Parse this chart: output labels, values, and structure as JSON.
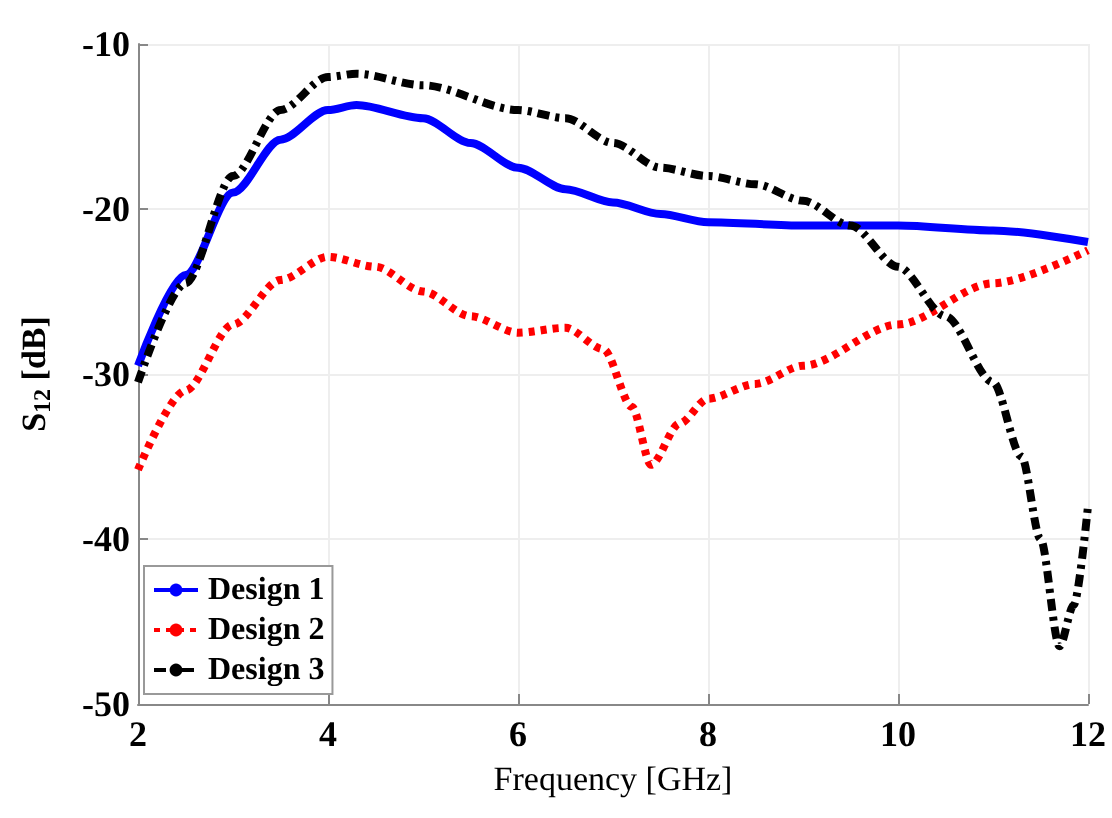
{
  "chart_data": {
    "type": "line",
    "xlabel": "Frequency [GHz]",
    "ylabel": "S$_{12}$ [dB]",
    "xlim": [
      2,
      12
    ],
    "xticks": [
      2,
      4,
      6,
      8,
      10,
      12
    ],
    "ylim": [
      -50,
      -10
    ],
    "yticks": [
      -50,
      -40,
      -30,
      -20,
      -10
    ],
    "grid": true,
    "legend": "bottom left",
    "marker": "none",
    "series": [
      {
        "name": "Design 1",
        "color": "#0000ff",
        "line_style": "solid",
        "x": [
          2,
          2.5,
          3,
          3.5,
          4,
          4.3,
          5,
          5.5,
          6,
          6.5,
          7,
          7.5,
          8,
          9,
          10,
          11,
          12
        ],
        "values": [
          -29.5,
          -24,
          -19,
          -15.8,
          -14,
          -13.7,
          -14.5,
          -16,
          -17.5,
          -18.8,
          -19.6,
          -20.3,
          -20.8,
          -21,
          -21,
          -21.3,
          -22
        ]
      },
      {
        "name": "Design 2",
        "color": "#ff0000",
        "line_style": "dotted",
        "x": [
          2,
          2.5,
          3,
          3.5,
          4,
          4.5,
          5,
          5.5,
          6,
          6.5,
          6.9,
          7.2,
          7.4,
          7.7,
          8,
          8.5,
          9,
          10,
          11,
          12
        ],
        "values": [
          -35.8,
          -31,
          -27,
          -24.3,
          -22.9,
          -23.5,
          -25,
          -26.5,
          -27.5,
          -27.2,
          -28.5,
          -32,
          -35.5,
          -33,
          -31.5,
          -30.6,
          -29.5,
          -27,
          -24.5,
          -22.5
        ]
      },
      {
        "name": "Design 3",
        "color": "#000000",
        "line_style": "dashed",
        "x": [
          2,
          2.5,
          3,
          3.5,
          4,
          4.3,
          5,
          6,
          6.5,
          7,
          7.5,
          8,
          8.5,
          9,
          9.5,
          10,
          10.5,
          11,
          11.3,
          11.5,
          11.7,
          11.85,
          12
        ],
        "values": [
          -30.5,
          -24.5,
          -18,
          -14,
          -12,
          -11.8,
          -12.5,
          -14,
          -14.5,
          -16,
          -17.5,
          -18,
          -18.5,
          -19.5,
          -21,
          -23.5,
          -26.5,
          -30.5,
          -35,
          -40,
          -46.5,
          -44,
          -38
        ]
      }
    ]
  }
}
